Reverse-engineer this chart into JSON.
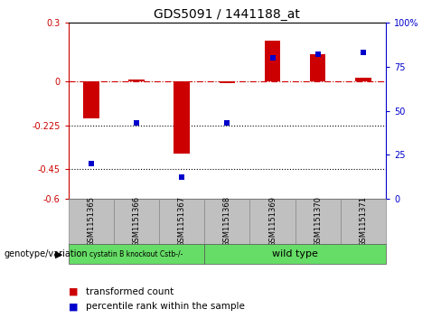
{
  "title": "GDS5091 / 1441188_at",
  "samples": [
    "GSM1151365",
    "GSM1151366",
    "GSM1151367",
    "GSM1151368",
    "GSM1151369",
    "GSM1151370",
    "GSM1151371"
  ],
  "red_values": [
    -0.19,
    0.01,
    -0.37,
    -0.01,
    0.21,
    0.14,
    0.02
  ],
  "blue_values_pct": [
    20,
    43,
    12,
    43,
    80,
    82,
    83
  ],
  "ylim_left": [
    -0.6,
    0.3
  ],
  "ylim_right": [
    0,
    100
  ],
  "legend_red": "transformed count",
  "legend_blue": "percentile rank within the sample",
  "genotype_label": "genotype/variation",
  "red_color": "#CC0000",
  "blue_color": "#0000CC",
  "bar_width": 0.35,
  "blue_marker_size": 5,
  "group1_label": "cystatin B knockout Cstb-/-",
  "group2_label": "wild type",
  "group_color": "#66DD66",
  "sample_box_color": "#C0C0C0",
  "left_yticks": [
    0.3,
    0.0,
    -0.225,
    -0.45,
    -0.6
  ],
  "left_yticklabels": [
    "0.3",
    "0",
    "-0.225",
    "-0.45",
    "-0.6"
  ],
  "right_yticks": [
    100,
    75,
    50,
    25,
    0
  ],
  "right_yticklabels": [
    "100%",
    "75",
    "50",
    "25",
    "0"
  ]
}
